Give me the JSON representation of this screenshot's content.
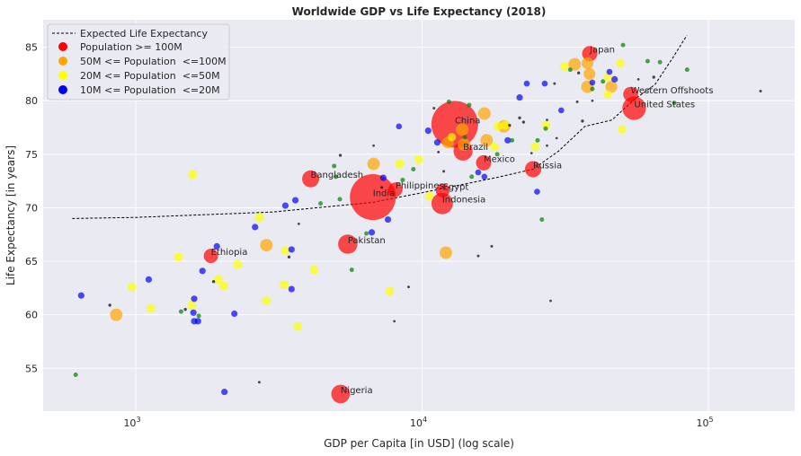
{
  "chart_data": {
    "type": "scatter",
    "title": "Worldwide GDP vs Life Expectancy (2018)",
    "xlabel": "GDP per Capita [in USD] (log scale)",
    "ylabel": "Life Expectancy [in years]",
    "xscale": "log",
    "xlim": [
      475,
      200000
    ],
    "ylim": [
      51.0,
      87.9
    ],
    "grid": true,
    "legend_position": "top-left",
    "xticks": [
      {
        "value": 1000,
        "base": "10",
        "exp": "3"
      },
      {
        "value": 10000,
        "base": "10",
        "exp": "4"
      },
      {
        "value": 100000,
        "base": "10",
        "exp": "5"
      }
    ],
    "yticks": [
      55,
      60,
      65,
      70,
      75,
      80,
      85
    ],
    "expected_curve": {
      "name": "Expected Life Expectancy",
      "color": "#000000",
      "points": [
        [
          600,
          69.0
        ],
        [
          1000,
          69.1
        ],
        [
          3000,
          69.6
        ],
        [
          6700,
          70.5
        ],
        [
          10000,
          71.4
        ],
        [
          13400,
          72.1
        ],
        [
          18000,
          72.8
        ],
        [
          24400,
          73.6
        ],
        [
          30000,
          75.3
        ],
        [
          37000,
          77.6
        ],
        [
          46000,
          78.2
        ],
        [
          55000,
          80.1
        ],
        [
          65000,
          81.5
        ],
        [
          75000,
          84.0
        ],
        [
          84000,
          86.1
        ]
      ]
    },
    "series": [
      {
        "name": "Population >= 100M",
        "color": "#ff0000",
        "in_legend": true,
        "points": [
          [
            13000,
            77.8,
            1400,
            "China"
          ],
          [
            6730,
            71.0,
            1350,
            "India"
          ],
          [
            55000,
            79.3,
            327,
            "United States"
          ],
          [
            53500,
            80.6,
            120,
            "Western Offshoots"
          ],
          [
            38500,
            84.4,
            127,
            "Japan"
          ],
          [
            13900,
            75.3,
            209,
            "Brazil"
          ],
          [
            16400,
            74.2,
            126,
            "Mexico"
          ],
          [
            24400,
            73.6,
            145,
            "Russia"
          ],
          [
            11750,
            70.4,
            268,
            "Indonesia"
          ],
          [
            11800,
            71.6,
            100,
            "Egypt"
          ],
          [
            8070,
            71.7,
            107,
            "Philippines"
          ],
          [
            4080,
            72.7,
            161,
            "Bangladesh"
          ],
          [
            5500,
            66.6,
            212,
            "Pakistan"
          ],
          [
            5190,
            52.6,
            196,
            "Nigeria"
          ],
          [
            1830,
            65.5,
            109,
            "Ethiopia"
          ]
        ]
      },
      {
        "name": "50M <= Population  <=100M",
        "color": "#ffa500",
        "in_legend": true,
        "points": [
          [
            855,
            60.0,
            80
          ],
          [
            2860,
            66.5,
            80
          ],
          [
            6770,
            74.1,
            80
          ],
          [
            12100,
            65.8,
            80
          ],
          [
            16500,
            78.8,
            80
          ],
          [
            19300,
            77.6,
            80
          ],
          [
            16800,
            76.3,
            80
          ],
          [
            13800,
            77.3,
            80
          ],
          [
            14000,
            75.9,
            80
          ],
          [
            34100,
            83.4,
            80
          ],
          [
            37800,
            83.5,
            70
          ],
          [
            38400,
            82.5,
            70
          ],
          [
            37800,
            81.3,
            80
          ],
          [
            45800,
            81.3,
            70
          ],
          [
            12300,
            76.1,
            70
          ]
        ]
      },
      {
        "name": "20M <= Population  <=50M",
        "color": "#ffff00",
        "in_legend": true,
        "points": [
          [
            1580,
            73.1,
            35
          ],
          [
            970,
            62.6,
            35
          ],
          [
            1410,
            65.4,
            35
          ],
          [
            1130,
            60.6,
            35
          ],
          [
            1570,
            60.9,
            35
          ],
          [
            1940,
            63.3,
            35
          ],
          [
            2030,
            62.7,
            35
          ],
          [
            2270,
            64.7,
            35
          ],
          [
            2700,
            69.1,
            35
          ],
          [
            3330,
            66.0,
            35
          ],
          [
            3300,
            62.8,
            35
          ],
          [
            2860,
            61.3,
            35
          ],
          [
            4200,
            64.2,
            35
          ],
          [
            3680,
            58.9,
            35
          ],
          [
            7700,
            62.2,
            35
          ],
          [
            8360,
            74.1,
            35
          ],
          [
            9730,
            74.5,
            35
          ],
          [
            10600,
            71.1,
            35
          ],
          [
            18400,
            77.6,
            35
          ],
          [
            19500,
            77.7,
            35
          ],
          [
            17900,
            75.7,
            35
          ],
          [
            24800,
            75.7,
            35
          ],
          [
            27100,
            77.7,
            35
          ],
          [
            31400,
            83.2,
            35
          ],
          [
            49200,
            83.5,
            30
          ],
          [
            44500,
            82.2,
            30
          ],
          [
            44500,
            80.6,
            30
          ],
          [
            49900,
            77.3,
            30
          ],
          [
            12700,
            76.6,
            30
          ]
        ]
      },
      {
        "name": "10M <= Population  <=20M",
        "color": "#0000ff",
        "in_legend": true,
        "points": [
          [
            645,
            61.8,
            15
          ],
          [
            1110,
            63.3,
            15
          ],
          [
            1590,
            60.2,
            15
          ],
          [
            1600,
            59.4,
            15
          ],
          [
            1650,
            59.4,
            15
          ],
          [
            1600,
            61.5,
            15
          ],
          [
            1710,
            64.1,
            15
          ],
          [
            1920,
            66.4,
            15
          ],
          [
            2210,
            60.1,
            15
          ],
          [
            2040,
            52.8,
            15
          ],
          [
            2610,
            68.2,
            15
          ],
          [
            3330,
            70.2,
            15
          ],
          [
            3610,
            70.7,
            15
          ],
          [
            3500,
            66.1,
            15
          ],
          [
            3500,
            62.4,
            15
          ],
          [
            7320,
            72.8,
            15
          ],
          [
            7600,
            68.9,
            15
          ],
          [
            6670,
            67.7,
            15
          ],
          [
            21900,
            80.3,
            15
          ],
          [
            23200,
            81.6,
            12
          ],
          [
            26800,
            81.6,
            12
          ],
          [
            30600,
            79.1,
            12
          ],
          [
            8300,
            77.6,
            12
          ],
          [
            10500,
            77.2,
            15
          ],
          [
            11300,
            76.1,
            15
          ],
          [
            19900,
            76.3,
            15
          ],
          [
            15700,
            73.3,
            12
          ],
          [
            16500,
            72.9,
            12
          ],
          [
            25200,
            71.5,
            12
          ],
          [
            45100,
            82.7,
            12
          ],
          [
            47000,
            82.0,
            15
          ],
          [
            39300,
            81.7,
            12
          ]
        ]
      },
      {
        "color": "#008000",
        "in_legend": false,
        "points": [
          [
            617,
            54.4,
            5
          ],
          [
            1440,
            60.3,
            5
          ],
          [
            1660,
            59.9,
            5
          ],
          [
            4930,
            73.9,
            5
          ],
          [
            5000,
            72.9,
            5
          ],
          [
            4420,
            70.4,
            5
          ],
          [
            5160,
            70.8,
            5
          ],
          [
            6390,
            67.6,
            5
          ],
          [
            5680,
            64.2,
            5
          ],
          [
            8550,
            72.6,
            5
          ],
          [
            9320,
            73.6,
            5
          ],
          [
            14900,
            72.9,
            5
          ],
          [
            25300,
            76.3,
            5
          ],
          [
            27000,
            77.4,
            5
          ],
          [
            20600,
            76.3,
            5
          ],
          [
            18300,
            75.0,
            5
          ],
          [
            50300,
            85.2,
            5
          ],
          [
            61300,
            83.7,
            5
          ],
          [
            67700,
            83.6,
            5
          ],
          [
            84200,
            82.9,
            5
          ],
          [
            42800,
            81.8,
            5
          ],
          [
            39300,
            81.1,
            5
          ],
          [
            32900,
            82.9,
            5
          ],
          [
            76000,
            79.8,
            5
          ],
          [
            12400,
            79.9,
            5
          ],
          [
            14600,
            79.6,
            5
          ],
          [
            14100,
            76.6,
            5
          ],
          [
            26200,
            68.9,
            5
          ]
        ]
      },
      {
        "color": "#000000",
        "in_legend": false,
        "points": [
          [
            812,
            60.9,
            1
          ],
          [
            1490,
            60.5,
            1
          ],
          [
            1870,
            63.1,
            1
          ],
          [
            3430,
            65.4,
            1
          ],
          [
            3710,
            68.5,
            0.3
          ],
          [
            2700,
            53.7,
            0.5
          ],
          [
            5180,
            74.9,
            1
          ],
          [
            6770,
            75.8,
            0.3
          ],
          [
            8970,
            62.6,
            0.5
          ],
          [
            15700,
            65.5,
            0.5
          ],
          [
            17500,
            66.4,
            0.5
          ],
          [
            8000,
            59.4,
            0.3
          ],
          [
            28100,
            61.3,
            0.3
          ],
          [
            11900,
            73.4,
            0.5
          ],
          [
            11400,
            75.2,
            0.5
          ],
          [
            7230,
            71.9,
            0.5
          ],
          [
            34800,
            79.9,
            0.5
          ],
          [
            36300,
            78.1,
            1
          ],
          [
            39300,
            80.0,
            0.3
          ],
          [
            21900,
            78.4,
            1
          ],
          [
            22600,
            78.0,
            1
          ],
          [
            20200,
            77.7,
            1
          ],
          [
            27300,
            75.8,
            0.3
          ],
          [
            29500,
            76.5,
            0.3
          ],
          [
            27300,
            78.2,
            0.3
          ],
          [
            29000,
            81.6,
            0.5
          ],
          [
            35200,
            82.6,
            1
          ],
          [
            64400,
            82.2,
            1
          ],
          [
            56900,
            82.0,
            0.3
          ],
          [
            11000,
            79.3,
            0.5
          ],
          [
            152000,
            80.9,
            0.5
          ],
          [
            24100,
            75.1,
            0.3
          ]
        ]
      }
    ]
  }
}
